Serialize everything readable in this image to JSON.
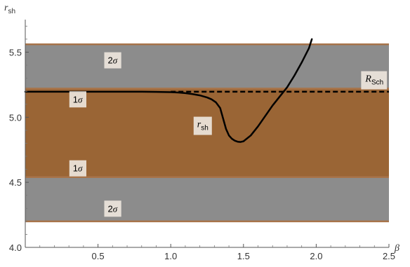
{
  "chart_data": {
    "type": "line",
    "xlabel": "β",
    "ylabel_main": "r",
    "ylabel_sub": "sh",
    "xlim": [
      0,
      2.5
    ],
    "ylim": [
      4.0,
      5.75
    ],
    "xticks": [
      {
        "value": 0.5,
        "label": "0.5"
      },
      {
        "value": 1.0,
        "label": "1.0"
      },
      {
        "value": 1.5,
        "label": "1.5"
      },
      {
        "value": 2.0,
        "label": "2.0"
      },
      {
        "value": 2.5,
        "label": "2.5"
      }
    ],
    "yticks": [
      {
        "value": 4.0,
        "label": "4.0"
      },
      {
        "value": 4.5,
        "label": "4.5"
      },
      {
        "value": 5.0,
        "label": "5.0"
      },
      {
        "value": 5.5,
        "label": "5.5"
      }
    ],
    "bands": [
      {
        "name": "2σ-upper",
        "y0": 5.22,
        "y1": 5.56,
        "color": "#8c8c8c"
      },
      {
        "name": "1σ",
        "y0": 4.54,
        "y1": 5.22,
        "color": "#9a6535"
      },
      {
        "name": "2σ-lower",
        "y0": 4.2,
        "y1": 4.54,
        "color": "#8c8c8c"
      }
    ],
    "band_edge_color": "#a8744a",
    "band_edges": [
      5.56,
      5.22,
      4.54,
      4.2
    ],
    "reference_line": {
      "y": 5.196,
      "x_start": 1.0,
      "x_end": 2.5,
      "style": "dashed",
      "color": "#000000"
    },
    "series": [
      {
        "color": "#000000",
        "x": [
          0.0,
          0.2,
          0.4,
          0.6,
          0.8,
          0.9,
          1.0,
          1.05,
          1.1,
          1.15,
          1.2,
          1.25,
          1.28,
          1.31,
          1.34,
          1.36,
          1.38,
          1.4,
          1.42,
          1.44,
          1.46,
          1.48,
          1.5,
          1.55,
          1.6,
          1.65,
          1.7,
          1.75,
          1.8,
          1.85,
          1.9,
          1.95,
          1.97
        ],
        "y": [
          5.196,
          5.196,
          5.196,
          5.196,
          5.196,
          5.195,
          5.193,
          5.19,
          5.185,
          5.178,
          5.168,
          5.152,
          5.138,
          5.115,
          5.07,
          4.99,
          4.91,
          4.86,
          4.835,
          4.82,
          4.812,
          4.81,
          4.815,
          4.86,
          4.93,
          5.01,
          5.09,
          5.16,
          5.23,
          5.32,
          5.42,
          5.53,
          5.6
        ]
      }
    ],
    "annotations": [
      {
        "id": "sigma2-upper",
        "main": "2",
        "sigma": "σ",
        "x": 0.6,
        "y": 5.44
      },
      {
        "id": "sigma1-upper",
        "main": "1",
        "sigma": "σ",
        "x": 0.36,
        "y": 5.14
      },
      {
        "id": "sigma1-lower",
        "main": "1",
        "sigma": "σ",
        "x": 0.36,
        "y": 4.61
      },
      {
        "id": "sigma2-lower",
        "main": "2",
        "sigma": "σ",
        "x": 0.6,
        "y": 4.3
      },
      {
        "id": "rsh",
        "main": "r",
        "sub": "sh",
        "x": 1.22,
        "y": 4.95
      },
      {
        "id": "rsch",
        "main": "R",
        "sub": "Sch",
        "x": 2.4,
        "y": 5.3
      }
    ]
  }
}
